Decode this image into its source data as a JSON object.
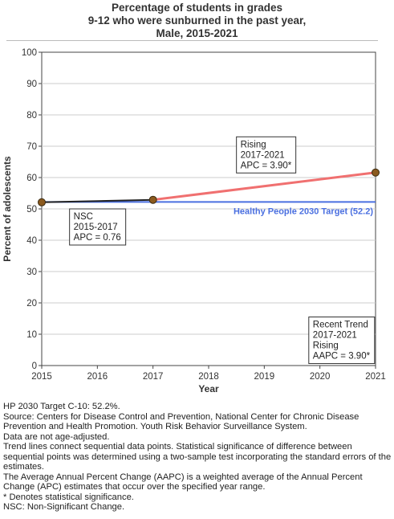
{
  "title": {
    "line1": "Percentage of students in grades",
    "line2": "9-12 who were sunburned in the past year,",
    "line3": "Male,  2015-2021"
  },
  "colors": {
    "nsc_segment": "#222222",
    "rising_segment": "#f07070",
    "target_line": "#4a6fe0",
    "point_fill": "#8b5a1e",
    "grid": "#cccccc"
  },
  "chart_data": {
    "type": "line",
    "xlabel": "Year",
    "ylabel": "Percent of adolescents",
    "xlim": [
      2015,
      2021
    ],
    "ylim": [
      0,
      100
    ],
    "x_ticks": [
      2015,
      2016,
      2017,
      2018,
      2019,
      2020,
      2021
    ],
    "y_ticks": [
      0,
      10,
      20,
      30,
      40,
      50,
      60,
      70,
      80,
      90,
      100
    ],
    "grid": true,
    "points": [
      {
        "x": 2015,
        "y": 52.1
      },
      {
        "x": 2017,
        "y": 52.9
      },
      {
        "x": 2021,
        "y": 61.6
      }
    ],
    "segments": [
      {
        "from": 2015,
        "to": 2017,
        "y_from": 52.1,
        "y_to": 52.9,
        "color_key": "nsc_segment"
      },
      {
        "from": 2017,
        "to": 2021,
        "y_from": 52.9,
        "y_to": 61.6,
        "color_key": "rising_segment"
      }
    ],
    "target": {
      "value": 52.2,
      "label": "Healthy People 2030 Target (52.2)"
    },
    "annotations": [
      {
        "id": "nsc",
        "x": 2015.5,
        "y": 50,
        "lines": [
          "NSC",
          "2015-2017",
          "APC =  0.76"
        ]
      },
      {
        "id": "rising",
        "x": 2018.5,
        "y": 73,
        "lines": [
          "Rising",
          "2017-2021",
          "APC =  3.90*"
        ]
      },
      {
        "id": "recent",
        "x": 2019.8,
        "y": 15.5,
        "lines": [
          "Recent Trend",
          "2017-2021",
          "Rising",
          "AAPC =  3.90*"
        ]
      }
    ]
  },
  "notes": [
    "HP 2030 Target C-10: 52.2%.",
    "Source: Centers for Disease Control and Prevention, National Center for Chronic Disease Prevention and Health Promotion. Youth Risk Behavior Surveillance System.",
    "Data are not age-adjusted.",
    "Trend lines connect sequential data points. Statistical significance of difference between sequential points was determined using a two-sample test incorporating the standard errors of the estimates.",
    "The Average Annual Percent Change (AAPC) is a weighted average of the Annual Percent Change (APC) estimates that occur over the specified year range.",
    "* Denotes statistical significance.",
    "NSC: Non-Significant Change."
  ]
}
